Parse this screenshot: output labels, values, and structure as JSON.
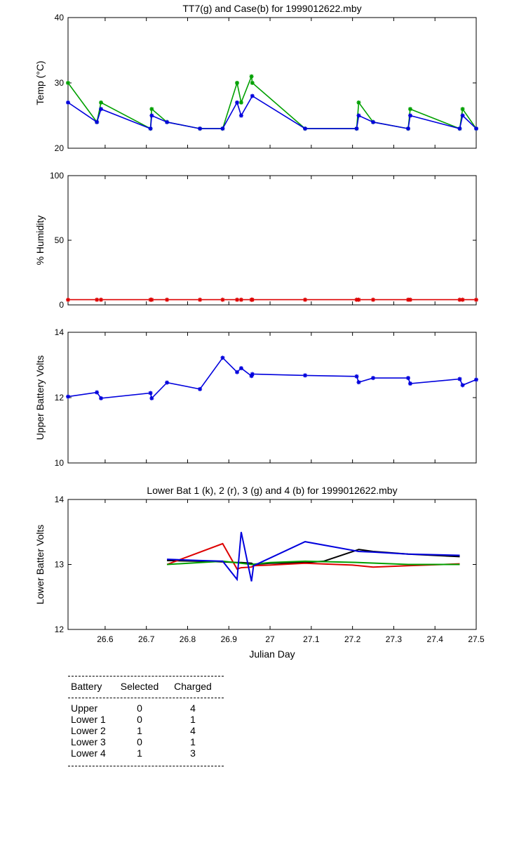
{
  "chart_data": [
    {
      "type": "line",
      "title": "TT7(g) and Case(b) for 1999012622.mby",
      "xlabel": "",
      "ylabel": "Temp  (°C)",
      "xlim": [
        26.51,
        27.5
      ],
      "ylim": [
        20,
        40
      ],
      "yticks": [
        "20",
        "30",
        "40"
      ],
      "series": [
        {
          "color": "#00a000",
          "x": [
            26.51,
            26.58,
            26.59,
            26.71,
            26.713,
            26.75,
            26.83,
            26.885,
            26.92,
            26.93,
            26.955,
            26.957,
            27.085,
            27.21,
            27.215,
            27.25,
            27.335,
            27.34,
            27.46,
            27.467,
            27.5
          ],
          "y": [
            30,
            24,
            27,
            23,
            26,
            24,
            23,
            23,
            30,
            27,
            31,
            30,
            23,
            23,
            27,
            24,
            23,
            26,
            23,
            26,
            23
          ]
        },
        {
          "color": "#0000dd",
          "x": [
            26.51,
            26.58,
            26.59,
            26.71,
            26.713,
            26.75,
            26.83,
            26.885,
            26.92,
            26.93,
            26.957,
            27.085,
            27.21,
            27.215,
            27.25,
            27.335,
            27.34,
            27.46,
            27.467,
            27.5
          ],
          "y": [
            27,
            24,
            26,
            23,
            25,
            24,
            23,
            23,
            27,
            25,
            28,
            23,
            23,
            25,
            24,
            23,
            25,
            23,
            25,
            23
          ]
        }
      ]
    },
    {
      "type": "line",
      "title": "",
      "xlabel": "",
      "ylabel": "% Humidity",
      "xlim": [
        26.51,
        27.5
      ],
      "ylim": [
        0,
        100
      ],
      "yticks": [
        "0",
        "50",
        "100"
      ],
      "series": [
        {
          "color": "#dd0000",
          "x": [
            26.51,
            26.58,
            26.59,
            26.71,
            26.713,
            26.75,
            26.83,
            26.885,
            26.92,
            26.93,
            26.955,
            26.957,
            27.085,
            27.21,
            27.215,
            27.25,
            27.335,
            27.34,
            27.46,
            27.467,
            27.5
          ],
          "y": [
            4,
            4,
            4,
            4,
            4,
            4,
            4,
            4,
            4,
            4,
            4,
            4,
            4,
            4,
            4,
            4,
            4,
            4,
            4,
            4,
            4
          ]
        }
      ]
    },
    {
      "type": "line",
      "title": "",
      "xlabel": "",
      "ylabel": "Upper Battery Volts",
      "xlim": [
        26.51,
        27.5
      ],
      "ylim": [
        10,
        14
      ],
      "yticks": [
        "10",
        "12",
        "14"
      ],
      "series": [
        {
          "color": "#0000dd",
          "x": [
            26.51,
            26.58,
            26.59,
            26.71,
            26.713,
            26.75,
            26.83,
            26.885,
            26.92,
            26.93,
            26.955,
            26.957,
            27.085,
            27.21,
            27.215,
            27.25,
            27.335,
            27.34,
            27.46,
            27.467,
            27.5
          ],
          "y": [
            12.03,
            12.16,
            11.98,
            12.14,
            11.98,
            12.46,
            12.26,
            13.22,
            12.78,
            12.9,
            12.66,
            12.72,
            12.68,
            12.65,
            12.47,
            12.6,
            12.6,
            12.43,
            12.57,
            12.38,
            12.55
          ]
        }
      ]
    },
    {
      "type": "line",
      "title": "Lower Bat 1 (k), 2 (r), 3 (g) and 4 (b) for 1999012622.mby",
      "xlabel": "Julian Day",
      "ylabel": "Lower Batter Volts",
      "xlim": [
        26.51,
        27.5
      ],
      "ylim": [
        12,
        14
      ],
      "yticks": [
        "12",
        "13",
        "14"
      ],
      "xticks": [
        26.6,
        26.7,
        26.8,
        26.9,
        27,
        27.1,
        27.2,
        27.3,
        27.4,
        27.5
      ],
      "xticklabels": [
        "26.6",
        "26.7",
        "26.8",
        "26.9",
        "27",
        "27.1",
        "27.2",
        "27.3",
        "27.4",
        "27.5"
      ],
      "series": [
        {
          "color": "#000000",
          "x": [
            26.75,
            26.83,
            26.885,
            26.92,
            26.93,
            26.955,
            26.96,
            27.0,
            27.085,
            27.13,
            27.215,
            27.25,
            27.335,
            27.46
          ],
          "y": [
            13.06,
            13.05,
            13.04,
            13.03,
            13.03,
            13.02,
            13.0,
            13.02,
            13.03,
            13.05,
            13.23,
            13.2,
            13.16,
            13.12
          ]
        },
        {
          "color": "#dd0000",
          "x": [
            26.75,
            26.885,
            26.92,
            26.93,
            26.955,
            26.96,
            27.0,
            27.085,
            27.2,
            27.25,
            27.335,
            27.46
          ],
          "y": [
            13.0,
            13.32,
            12.93,
            12.95,
            12.96,
            12.98,
            12.99,
            13.02,
            12.99,
            12.96,
            12.98,
            13.01
          ]
        },
        {
          "color": "#00a000",
          "x": [
            26.75,
            26.885,
            26.93,
            26.955,
            27.0,
            27.085,
            27.215,
            27.335,
            27.46
          ],
          "y": [
            13.0,
            13.05,
            13.02,
            13.0,
            13.03,
            13.05,
            13.03,
            13.0,
            13.0
          ]
        },
        {
          "color": "#0000dd",
          "x": [
            26.75,
            26.83,
            26.885,
            26.92,
            26.93,
            26.955,
            26.96,
            27.085,
            27.215,
            27.25,
            27.335,
            27.46
          ],
          "y": [
            13.08,
            13.06,
            13.05,
            12.77,
            13.5,
            12.74,
            12.98,
            13.35,
            13.2,
            13.19,
            13.16,
            13.14
          ]
        }
      ]
    }
  ],
  "table": {
    "headers": [
      "Battery",
      "Selected",
      "Charged"
    ],
    "rows": [
      [
        "Upper",
        "0",
        "4"
      ],
      [
        "Lower 1",
        "0",
        "1"
      ],
      [
        "Lower 2",
        "1",
        "4"
      ],
      [
        "Lower 3",
        "0",
        "1"
      ],
      [
        "Lower 4",
        "1",
        "3"
      ]
    ]
  }
}
